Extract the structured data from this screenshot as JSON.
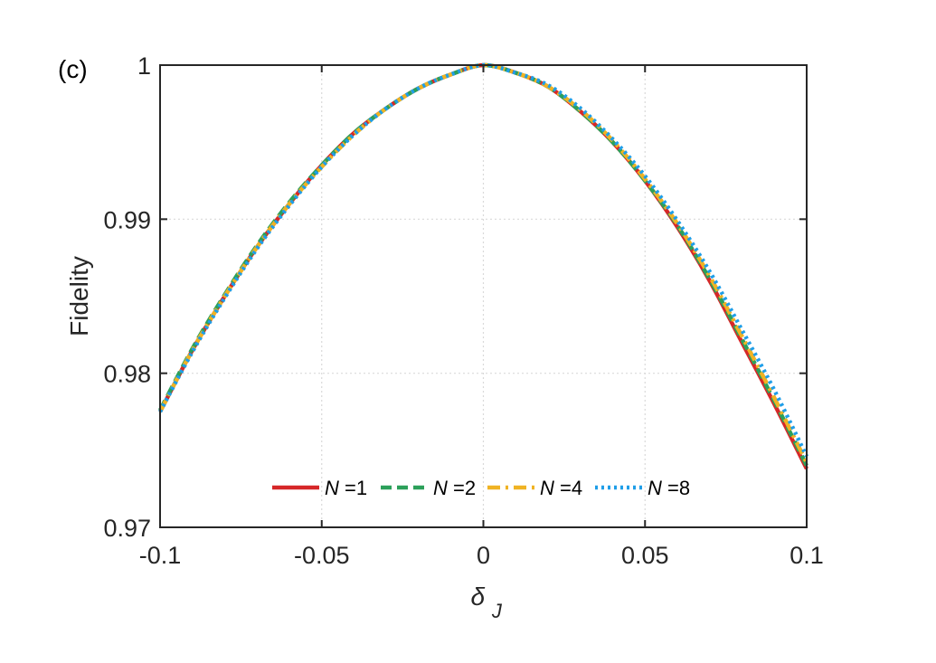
{
  "panel_label": "(c)",
  "colors": {
    "N1": "#d62728",
    "N2": "#2ca05a",
    "N4": "#f0b323",
    "N8": "#1f9ee8",
    "axis": "#262626",
    "grid": "#d9d9d9"
  },
  "chart_data": {
    "type": "line",
    "xlabel": "δ",
    "xlabel_sub": "J",
    "ylabel": "Fidelity",
    "xlim": [
      -0.1,
      0.1
    ],
    "ylim": [
      0.97,
      1.0
    ],
    "xticks": [
      -0.1,
      -0.05,
      0,
      0.05,
      0.1
    ],
    "xtick_labels": [
      "-0.1",
      "-0.05",
      "0",
      "0.05",
      "0.1"
    ],
    "yticks": [
      0.97,
      0.98,
      0.99,
      1.0
    ],
    "ytick_labels": [
      "0.97",
      "0.98",
      "0.99",
      "1"
    ],
    "grid": true,
    "legend_position": "bottom-center",
    "legend_orientation": "horizontal",
    "series": [
      {
        "name": "N =1",
        "legend_var": "N",
        "legend_rest": " =1",
        "style": "solid",
        "x": [
          -0.1,
          -0.09,
          -0.08,
          -0.07,
          -0.06,
          -0.05,
          -0.04,
          -0.03,
          -0.02,
          -0.01,
          0,
          0.01,
          0.02,
          0.03,
          0.04,
          0.05,
          0.06,
          0.07,
          0.08,
          0.09,
          0.1
        ],
        "y": [
          0.9775,
          0.9815,
          0.985,
          0.9882,
          0.991,
          0.9935,
          0.9956,
          0.9972,
          0.9985,
          0.9994,
          1.0,
          0.9995,
          0.9986,
          0.997,
          0.995,
          0.9925,
          0.9895,
          0.986,
          0.982,
          0.978,
          0.9738
        ]
      },
      {
        "name": "N =2",
        "legend_var": "N",
        "legend_rest": " =2",
        "style": "dashed",
        "x": [
          -0.1,
          -0.09,
          -0.08,
          -0.07,
          -0.06,
          -0.05,
          -0.04,
          -0.03,
          -0.02,
          -0.01,
          0,
          0.01,
          0.02,
          0.03,
          0.04,
          0.05,
          0.06,
          0.07,
          0.08,
          0.09,
          0.1
        ],
        "y": [
          0.9776,
          0.9816,
          0.9851,
          0.9883,
          0.9911,
          0.9935,
          0.9956,
          0.9972,
          0.9985,
          0.9994,
          1.0,
          0.9995,
          0.9986,
          0.997,
          0.995,
          0.9925,
          0.9896,
          0.9861,
          0.9822,
          0.9782,
          0.974
        ]
      },
      {
        "name": "N =4",
        "legend_var": "N",
        "legend_rest": " =4",
        "style": "dashdot",
        "x": [
          -0.1,
          -0.09,
          -0.08,
          -0.07,
          -0.06,
          -0.05,
          -0.04,
          -0.03,
          -0.02,
          -0.01,
          0,
          0.01,
          0.02,
          0.03,
          0.04,
          0.05,
          0.06,
          0.07,
          0.08,
          0.09,
          0.1
        ],
        "y": [
          0.9775,
          0.9815,
          0.985,
          0.9882,
          0.991,
          0.9934,
          0.9955,
          0.9972,
          0.9985,
          0.9994,
          1.0,
          0.9995,
          0.9986,
          0.9971,
          0.9951,
          0.9926,
          0.9897,
          0.9863,
          0.9824,
          0.9784,
          0.9742
        ]
      },
      {
        "name": "N =8",
        "legend_var": "N",
        "legend_rest": " =8",
        "style": "dotted",
        "x": [
          -0.1,
          -0.09,
          -0.08,
          -0.07,
          -0.06,
          -0.05,
          -0.04,
          -0.03,
          -0.02,
          -0.01,
          0,
          0.01,
          0.02,
          0.03,
          0.04,
          0.05,
          0.06,
          0.07,
          0.08,
          0.09,
          0.1
        ],
        "y": [
          0.9775,
          0.9814,
          0.9849,
          0.9881,
          0.9909,
          0.9934,
          0.9955,
          0.9972,
          0.9985,
          0.9994,
          1.0,
          0.9995,
          0.9987,
          0.9972,
          0.9952,
          0.9928,
          0.9899,
          0.9866,
          0.9828,
          0.9789,
          0.9746
        ]
      }
    ]
  }
}
